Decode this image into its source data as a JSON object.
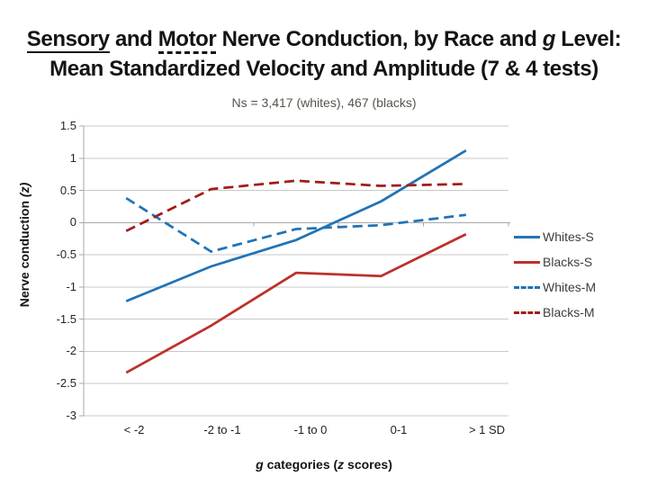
{
  "title": {
    "line1_parts": [
      {
        "text": "Sensory",
        "underline": "solid"
      },
      {
        "text": " and "
      },
      {
        "text": "Motor",
        "underline": "dashed"
      },
      {
        "text": " Nerve Conduction, by Race and "
      },
      {
        "text": "g",
        "italic": true
      },
      {
        "text": " Level:"
      }
    ],
    "line2": "Mean Standardized Velocity and Amplitude (7 & 4 tests)"
  },
  "subtitle": "Ns = 3,417 (whites), 467 (blacks)",
  "chart_data": {
    "type": "line",
    "title": "Sensory and Motor Nerve Conduction, by Race and g Level: Mean Standardized Velocity and Amplitude (7 & 4 tests)",
    "subtitle": "Ns = 3,417 (whites), 467 (blacks)",
    "categories": [
      "< -2",
      "-2 to -1",
      "-1 to 0",
      "0-1",
      ">  1 SD"
    ],
    "series": [
      {
        "name": "Whites-S",
        "color": "#2273b5",
        "dash": "solid",
        "values": [
          -1.22,
          -0.68,
          -0.27,
          0.33,
          1.12
        ]
      },
      {
        "name": "Blacks-S",
        "color": "#bd312a",
        "dash": "solid",
        "values": [
          -2.33,
          -1.6,
          -0.78,
          -0.83,
          -0.18
        ]
      },
      {
        "name": "Whites-M",
        "color": "#2273b5",
        "dash": "dashed",
        "values": [
          0.38,
          -0.45,
          -0.1,
          -0.04,
          0.12
        ]
      },
      {
        "name": "Blacks-M",
        "color": "#a11d1d",
        "dash": "dashed",
        "values": [
          -0.13,
          0.52,
          0.65,
          0.57,
          0.6
        ]
      }
    ],
    "xlabel_parts": [
      {
        "text": "g",
        "italic": true
      },
      {
        "text": " categories  ("
      },
      {
        "text": "z",
        "italic": true
      },
      {
        "text": " scores)"
      }
    ],
    "ylabel_parts": [
      {
        "text": "Nerve conduction "
      },
      {
        "text": "(z)",
        "italic": true
      }
    ],
    "xlabel": "g categories (z scores)",
    "ylabel": "Nerve conduction (z)",
    "ylim": [
      -3,
      1.5
    ],
    "yticks": [
      1.5,
      1,
      0.5,
      0,
      -0.5,
      -1,
      -1.5,
      -2,
      -2.5,
      -3
    ],
    "grid": true,
    "legend_position": "right",
    "grid_color": "#c9c9c9",
    "axis_color": "#a9a9a9"
  }
}
